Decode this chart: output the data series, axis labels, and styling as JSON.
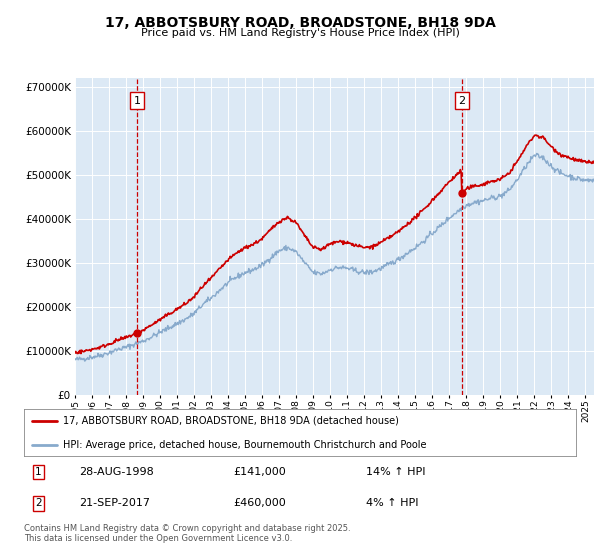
{
  "title": "17, ABBOTSBURY ROAD, BROADSTONE, BH18 9DA",
  "subtitle": "Price paid vs. HM Land Registry's House Price Index (HPI)",
  "background_color": "#dce9f5",
  "plot_bg_color": "#dce9f5",
  "line1_color": "#cc0000",
  "line2_color": "#88aacc",
  "vline_color": "#cc0000",
  "purchase1_date": "28-AUG-1998",
  "purchase1_price": 141000,
  "purchase1_hpi": "14% ↑ HPI",
  "purchase2_date": "21-SEP-2017",
  "purchase2_price": 460000,
  "purchase2_hpi": "4% ↑ HPI",
  "footer": "Contains HM Land Registry data © Crown copyright and database right 2025.\nThis data is licensed under the Open Government Licence v3.0.",
  "legend1": "17, ABBOTSBURY ROAD, BROADSTONE, BH18 9DA (detached house)",
  "legend2": "HPI: Average price, detached house, Bournemouth Christchurch and Poole",
  "xmin": 1995.0,
  "xmax": 2025.5,
  "ymin": 0,
  "ymax": 720000,
  "yticks": [
    0,
    100000,
    200000,
    300000,
    400000,
    500000,
    600000,
    700000
  ],
  "purchase1_x": 1998.65,
  "purchase2_x": 2017.72,
  "hpi_years": [
    1995,
    1995.5,
    1996,
    1996.5,
    1997,
    1997.5,
    1998,
    1998.5,
    1999,
    1999.5,
    2000,
    2000.5,
    2001,
    2001.5,
    2002,
    2002.5,
    2003,
    2003.5,
    2004,
    2004.5,
    2005,
    2005.5,
    2006,
    2006.5,
    2007,
    2007.5,
    2008,
    2008.5,
    2009,
    2009.5,
    2010,
    2010.5,
    2011,
    2011.5,
    2012,
    2012.5,
    2013,
    2013.5,
    2014,
    2014.5,
    2015,
    2015.5,
    2016,
    2016.5,
    2017,
    2017.5,
    2018,
    2018.5,
    2019,
    2019.5,
    2020,
    2020.5,
    2021,
    2021.5,
    2022,
    2022.5,
    2023,
    2023.5,
    2024,
    2024.5,
    2025
  ],
  "hpi_vals": [
    80000,
    82000,
    86000,
    90000,
    96000,
    103000,
    108000,
    115000,
    122000,
    132000,
    142000,
    152000,
    162000,
    172000,
    185000,
    205000,
    220000,
    238000,
    255000,
    268000,
    278000,
    285000,
    295000,
    312000,
    328000,
    335000,
    325000,
    300000,
    278000,
    275000,
    285000,
    290000,
    288000,
    282000,
    278000,
    280000,
    288000,
    298000,
    308000,
    322000,
    335000,
    350000,
    368000,
    385000,
    403000,
    418000,
    432000,
    438000,
    442000,
    448000,
    452000,
    465000,
    490000,
    520000,
    545000,
    540000,
    520000,
    505000,
    498000,
    492000,
    488000
  ]
}
